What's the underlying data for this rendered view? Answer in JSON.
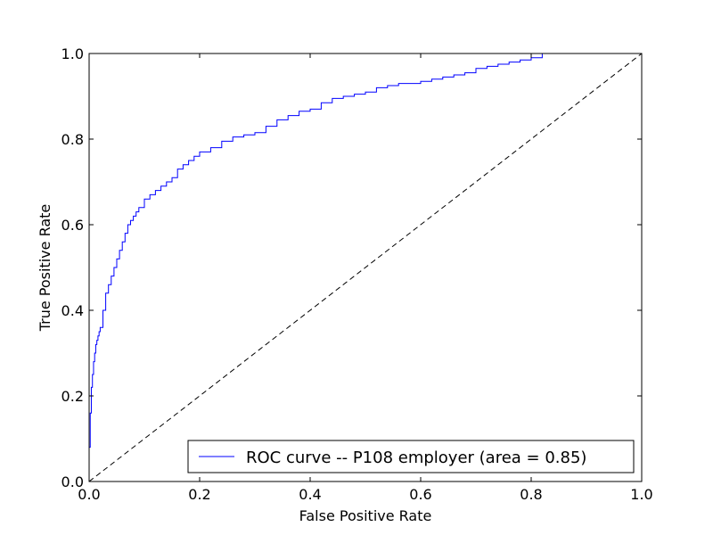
{
  "chart_data": {
    "type": "line",
    "title": "",
    "xlabel": "False Positive Rate",
    "ylabel": "True Positive Rate",
    "xlim": [
      0.0,
      1.0
    ],
    "ylim": [
      0.0,
      1.0
    ],
    "xticks": [
      "0.0",
      "0.2",
      "0.4",
      "0.6",
      "0.8",
      "1.0"
    ],
    "yticks": [
      "0.0",
      "0.2",
      "0.4",
      "0.6",
      "0.8",
      "1.0"
    ],
    "grid": false,
    "legend_position": "bottom-right",
    "series": [
      {
        "name": "ROC curve -- P108 employer (area = 0.85)",
        "color": "#0000ff",
        "style": "step",
        "x": [
          0.0,
          0.0,
          0.002,
          0.004,
          0.006,
          0.008,
          0.01,
          0.012,
          0.014,
          0.016,
          0.018,
          0.02,
          0.025,
          0.03,
          0.035,
          0.04,
          0.045,
          0.05,
          0.055,
          0.06,
          0.065,
          0.07,
          0.075,
          0.08,
          0.085,
          0.09,
          0.1,
          0.11,
          0.12,
          0.13,
          0.14,
          0.15,
          0.16,
          0.17,
          0.18,
          0.19,
          0.2,
          0.21,
          0.22,
          0.24,
          0.26,
          0.28,
          0.3,
          0.32,
          0.34,
          0.36,
          0.38,
          0.4,
          0.42,
          0.44,
          0.46,
          0.48,
          0.5,
          0.52,
          0.54,
          0.56,
          0.58,
          0.6,
          0.62,
          0.64,
          0.66,
          0.68,
          0.7,
          0.72,
          0.74,
          0.76,
          0.78,
          0.8,
          0.82,
          0.83,
          1.0
        ],
        "y": [
          0.0,
          0.08,
          0.16,
          0.22,
          0.25,
          0.28,
          0.3,
          0.32,
          0.33,
          0.34,
          0.35,
          0.36,
          0.4,
          0.44,
          0.46,
          0.48,
          0.5,
          0.52,
          0.54,
          0.56,
          0.58,
          0.6,
          0.61,
          0.62,
          0.63,
          0.64,
          0.66,
          0.67,
          0.68,
          0.69,
          0.7,
          0.71,
          0.73,
          0.74,
          0.75,
          0.76,
          0.77,
          0.77,
          0.78,
          0.795,
          0.805,
          0.81,
          0.815,
          0.83,
          0.845,
          0.855,
          0.865,
          0.87,
          0.885,
          0.895,
          0.9,
          0.905,
          0.91,
          0.92,
          0.925,
          0.93,
          0.93,
          0.935,
          0.94,
          0.945,
          0.95,
          0.955,
          0.965,
          0.97,
          0.975,
          0.98,
          0.985,
          0.99,
          1.0,
          1.0,
          1.0
        ]
      },
      {
        "name": "",
        "color": "#000000",
        "style": "dashed",
        "x": [
          0.0,
          1.0
        ],
        "y": [
          0.0,
          1.0
        ]
      }
    ]
  }
}
